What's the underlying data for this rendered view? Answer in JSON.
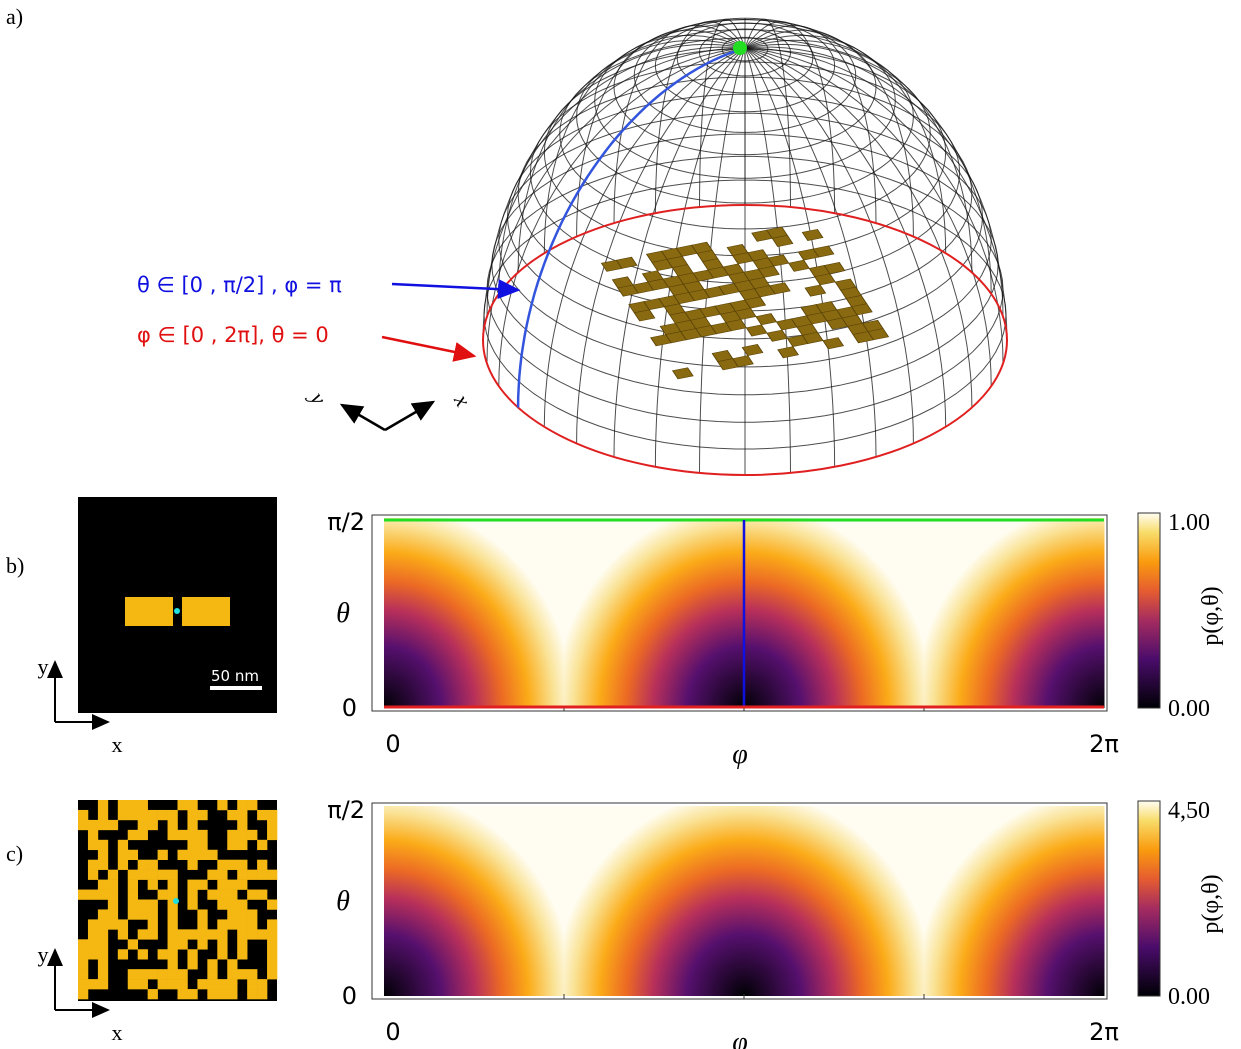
{
  "panels": [
    {
      "label": "a)",
      "annotations": [
        "θ ∈ [0 , π/2] , φ = π",
        "φ ∈ [0 , 2π], θ = 0"
      ],
      "axes": [
        "y",
        "x"
      ]
    },
    {
      "label": "b)",
      "scale_bar": "50 nm",
      "inset_axes": [
        "y",
        "x"
      ],
      "heatmap": {
        "y_label": "θ",
        "x_label": "φ",
        "y_ticks": [
          "π/2",
          "0"
        ],
        "x_ticks": [
          "0",
          "2π"
        ],
        "colorbar": {
          "label": "p(φ,θ)",
          "ticks": [
            "1.00",
            "0.00"
          ]
        }
      }
    },
    {
      "label": "c)",
      "inset_axes": [
        "y",
        "x"
      ],
      "heatmap": {
        "y_label": "θ",
        "x_label": "φ",
        "y_ticks": [
          "π/2",
          "0"
        ],
        "x_ticks": [
          "0",
          "2π"
        ],
        "colorbar": {
          "label": "p(φ,θ)",
          "ticks": [
            "4,50",
            "0.00"
          ]
        }
      }
    }
  ]
}
